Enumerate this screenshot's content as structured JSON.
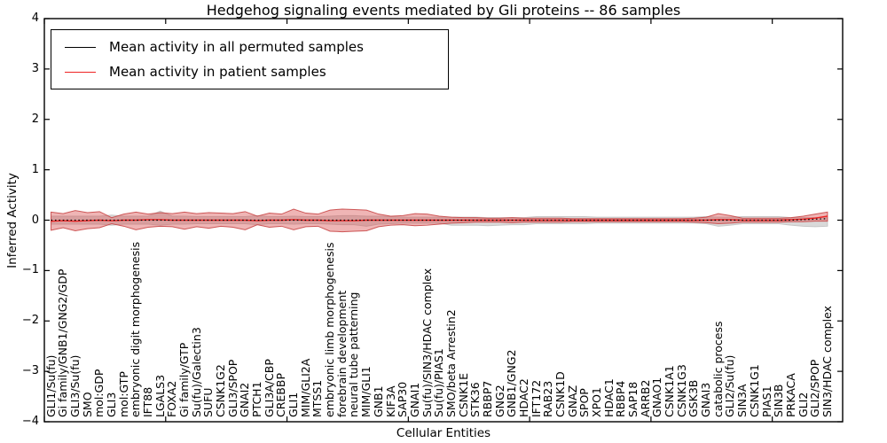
{
  "chart_data": {
    "type": "line",
    "title": "Hedgehog signaling events mediated by Gli proteins -- 86 samples",
    "xlabel": "Cellular Entities",
    "ylabel": "Inferred Activity",
    "ylim": [
      -4,
      4
    ],
    "yticks": [
      -4,
      -3,
      -2,
      -1,
      0,
      1,
      2,
      3,
      4
    ],
    "x_major_tick_every": 10,
    "grid": false,
    "legend_position": "upper left",
    "categories": [
      "GLI1/Su(fu)",
      "Gi family/GNB1/GNG2/GDP",
      "GLI3/Su(fu)",
      "SMO",
      "mol:GDP",
      "GLI3",
      "mol:GTP",
      "embryonic digit morphogenesis",
      "IFT88",
      "LGALS3",
      "FOXA2",
      "Gi family/GTP",
      "Su(fu)/Galectin3",
      "SUFU",
      "CSNK1G2",
      "GLI3/SPOP",
      "GNAI2",
      "PTCH1",
      "GLI3A/CBP",
      "CREBBP",
      "GLI1",
      "MIM/GLI2A",
      "MTSS1",
      "embryonic limb morphogenesis",
      "forebrain development",
      "neural tube patterning",
      "MIM/GLI1",
      "GNB1",
      "KIF3A",
      "SAP30",
      "GNAI1",
      "Su(fu)/SIN3/HDAC complex",
      "Su(fu)/PIAS1",
      "SMO/beta Arrestin2",
      "CSNK1E",
      "STK36",
      "RBBP7",
      "GNG2",
      "GNB1/GNG2",
      "HDAC2",
      "IFT172",
      "RAB23",
      "CSNK1D",
      "GNAZ",
      "SPOP",
      "XPO1",
      "HDAC1",
      "RBBP4",
      "SAP18",
      "ARRB2",
      "GNAO1",
      "CSNK1A1",
      "CSNK1G3",
      "GSK3B",
      "GNAI3",
      "catabolic process",
      "GLI2/Su(fu)",
      "SIN3A",
      "CSNK1G1",
      "PIAS1",
      "SIN3B",
      "PRKACA",
      "GLI2",
      "GLI2/SPOP",
      "SIN3/HDAC complex"
    ],
    "series": [
      {
        "name": "Mean activity in all permuted samples",
        "color": "#000000",
        "style": "dotted",
        "values": [
          0,
          0,
          0,
          0,
          0,
          0,
          0,
          0,
          0,
          0,
          0,
          0,
          0,
          0,
          0,
          0,
          0,
          0,
          0,
          0,
          0,
          0,
          0,
          0,
          0,
          0,
          0,
          0,
          0,
          0,
          0,
          0,
          0,
          0,
          0,
          0,
          0,
          0,
          0,
          0,
          0,
          0,
          0,
          0,
          0,
          0,
          0,
          0,
          0,
          0,
          0,
          0,
          0,
          0,
          0,
          0,
          0,
          0,
          0,
          0,
          0,
          0,
          0.01,
          0.02,
          0.03
        ]
      },
      {
        "name": "Mean activity in patient samples",
        "color": "#ee2222",
        "style": "solid",
        "values": [
          -0.02,
          -0.01,
          -0.02,
          -0.01,
          0,
          -0.01,
          0,
          0,
          0.01,
          0.01,
          0,
          0,
          0,
          0,
          0,
          0,
          0,
          -0.01,
          0,
          0,
          0.01,
          0,
          0,
          -0.01,
          -0.01,
          -0.01,
          0,
          0,
          0,
          0,
          0,
          0,
          0,
          0,
          0,
          0,
          0,
          0,
          0,
          0,
          0,
          0,
          0,
          0,
          0,
          0,
          0,
          0,
          0,
          0,
          0,
          0,
          0,
          0,
          0,
          0.01,
          0.01,
          0,
          0,
          0,
          0,
          0.01,
          0.02,
          0.04,
          0.08
        ]
      }
    ],
    "bands": [
      {
        "name": "permuted samples range",
        "color": "#8a8a8a",
        "edge_color": "#c2c2c2",
        "opacity": 0.32,
        "upper": [
          0.08,
          0.08,
          0.08,
          0.08,
          0.08,
          0.1,
          0.08,
          0.08,
          0.08,
          0.18,
          0.08,
          0.08,
          0.07,
          0.07,
          0.07,
          0.07,
          0.07,
          0.09,
          0.07,
          0.07,
          0.08,
          0.07,
          0.07,
          0.08,
          0.09,
          0.09,
          0.08,
          0.08,
          0.07,
          0.06,
          0.06,
          0.06,
          0.06,
          0.06,
          0.06,
          0.06,
          0.05,
          0.05,
          0.05,
          0.05,
          0.07,
          0.07,
          0.07,
          0.07,
          0.07,
          0.06,
          0.06,
          0.06,
          0.06,
          0.06,
          0.06,
          0.06,
          0.06,
          0.06,
          0.07,
          0.06,
          0.06,
          0.07,
          0.07,
          0.07,
          0.07,
          0.05,
          0.05,
          0.05,
          0.06
        ],
        "lower": [
          -0.08,
          -0.08,
          -0.08,
          -0.08,
          -0.08,
          -0.1,
          -0.08,
          -0.08,
          -0.08,
          -0.1,
          -0.08,
          -0.08,
          -0.07,
          -0.07,
          -0.07,
          -0.07,
          -0.07,
          -0.09,
          -0.07,
          -0.07,
          -0.08,
          -0.07,
          -0.07,
          -0.08,
          -0.09,
          -0.09,
          -0.12,
          -0.08,
          -0.07,
          -0.06,
          -0.06,
          -0.06,
          -0.06,
          -0.1,
          -0.1,
          -0.1,
          -0.11,
          -0.1,
          -0.09,
          -0.09,
          -0.07,
          -0.07,
          -0.07,
          -0.07,
          -0.07,
          -0.06,
          -0.06,
          -0.06,
          -0.06,
          -0.06,
          -0.06,
          -0.06,
          -0.06,
          -0.06,
          -0.07,
          -0.12,
          -0.1,
          -0.07,
          -0.07,
          -0.07,
          -0.07,
          -0.1,
          -0.12,
          -0.13,
          -0.12
        ]
      },
      {
        "name": "patient samples range",
        "color": "#d94f4f",
        "edge_color": "#c94848",
        "opacity": 0.42,
        "upper": [
          0.16,
          0.13,
          0.19,
          0.15,
          0.17,
          0.05,
          0.12,
          0.16,
          0.12,
          0.15,
          0.13,
          0.16,
          0.13,
          0.15,
          0.14,
          0.13,
          0.17,
          0.08,
          0.14,
          0.12,
          0.22,
          0.14,
          0.12,
          0.2,
          0.22,
          0.21,
          0.2,
          0.12,
          0.08,
          0.09,
          0.13,
          0.12,
          0.08,
          0.06,
          0.05,
          0.05,
          0.04,
          0.04,
          0.05,
          0.04,
          0.04,
          0.04,
          0.04,
          0.03,
          0.03,
          0.03,
          0.03,
          0.03,
          0.03,
          0.03,
          0.03,
          0.03,
          0.03,
          0.04,
          0.06,
          0.13,
          0.09,
          0.04,
          0.04,
          0.04,
          0.04,
          0.05,
          0.08,
          0.12,
          0.16
        ],
        "lower": [
          -0.2,
          -0.15,
          -0.21,
          -0.17,
          -0.15,
          -0.07,
          -0.12,
          -0.19,
          -0.14,
          -0.12,
          -0.13,
          -0.18,
          -0.13,
          -0.16,
          -0.12,
          -0.14,
          -0.19,
          -0.09,
          -0.14,
          -0.12,
          -0.19,
          -0.13,
          -0.12,
          -0.22,
          -0.23,
          -0.22,
          -0.21,
          -0.13,
          -0.1,
          -0.09,
          -0.11,
          -0.1,
          -0.08,
          -0.06,
          -0.05,
          -0.04,
          -0.04,
          -0.04,
          -0.05,
          -0.04,
          -0.04,
          -0.04,
          -0.04,
          -0.03,
          -0.03,
          -0.03,
          -0.03,
          -0.03,
          -0.03,
          -0.03,
          -0.03,
          -0.03,
          -0.03,
          -0.04,
          -0.05,
          -0.07,
          -0.06,
          -0.04,
          -0.04,
          -0.04,
          -0.04,
          -0.03,
          -0.03,
          -0.02,
          -0.02
        ]
      }
    ]
  },
  "colors": {
    "frame": "#000000",
    "background": "#ffffff"
  }
}
